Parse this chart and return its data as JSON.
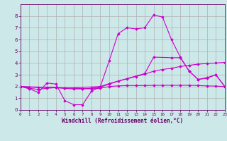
{
  "xlabel": "Windchill (Refroidissement éolien,°C)",
  "background_color": "#cce8e8",
  "grid_color": "#b0b0b0",
  "line_color": "#cc00cc",
  "xlim": [
    0,
    23
  ],
  "ylim": [
    0,
    9
  ],
  "xticks": [
    0,
    1,
    2,
    3,
    4,
    5,
    6,
    7,
    8,
    9,
    10,
    11,
    12,
    13,
    14,
    15,
    16,
    17,
    18,
    19,
    20,
    21,
    22,
    23
  ],
  "yticks": [
    0,
    1,
    2,
    3,
    4,
    5,
    6,
    7,
    8
  ],
  "series": [
    {
      "x": [
        0,
        1,
        2,
        3,
        4,
        5,
        6,
        7,
        8,
        9,
        10,
        11,
        12,
        13,
        14,
        15,
        16,
        17,
        18,
        19,
        20,
        21,
        22,
        23
      ],
      "y": [
        2.0,
        1.8,
        1.5,
        2.3,
        2.2,
        0.8,
        0.45,
        0.45,
        1.6,
        2.0,
        4.2,
        6.5,
        7.0,
        6.9,
        7.0,
        8.1,
        7.9,
        6.0,
        4.5,
        3.3,
        2.6,
        2.7,
        3.0,
        2.0
      ]
    },
    {
      "x": [
        0,
        1,
        2,
        3,
        4,
        5,
        6,
        7,
        8,
        9,
        10,
        11,
        12,
        13,
        14,
        15,
        16,
        17,
        18,
        19,
        20,
        21,
        22,
        23
      ],
      "y": [
        2.0,
        1.85,
        1.75,
        1.85,
        1.9,
        1.85,
        1.78,
        1.8,
        1.85,
        1.95,
        2.2,
        2.45,
        2.65,
        2.85,
        3.05,
        3.3,
        3.45,
        3.55,
        3.7,
        3.8,
        3.9,
        3.95,
        4.0,
        4.05
      ]
    },
    {
      "x": [
        0,
        1,
        2,
        3,
        4,
        5,
        6,
        7,
        8,
        9,
        10,
        11,
        12,
        13,
        14,
        15,
        16,
        17,
        18,
        19,
        20,
        21,
        22,
        23
      ],
      "y": [
        2.0,
        1.95,
        1.9,
        1.95,
        1.92,
        1.88,
        1.85,
        1.82,
        1.8,
        1.85,
        2.0,
        2.05,
        2.08,
        2.08,
        2.08,
        2.1,
        2.1,
        2.1,
        2.1,
        2.1,
        2.08,
        2.05,
        2.03,
        2.0
      ]
    },
    {
      "x": [
        0,
        4,
        5,
        9,
        10,
        14,
        15,
        17,
        18,
        19,
        20,
        21,
        22,
        23
      ],
      "y": [
        2.0,
        1.9,
        1.85,
        2.0,
        2.25,
        3.1,
        4.5,
        4.45,
        4.45,
        3.3,
        2.6,
        2.75,
        3.0,
        2.0
      ]
    }
  ]
}
